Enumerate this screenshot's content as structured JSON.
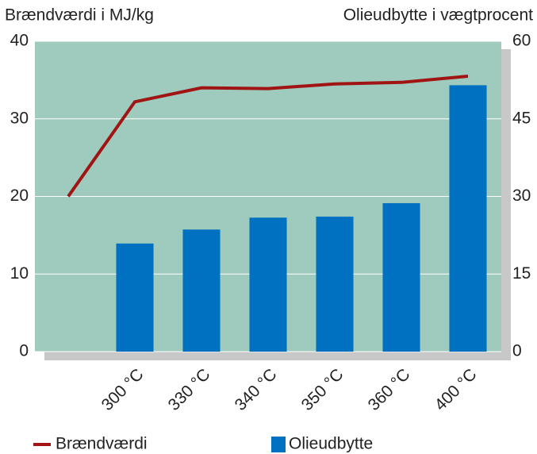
{
  "chart_data": {
    "type": "bar",
    "y_label": "Brændværdi i MJ/kg",
    "y2_label": "Olieudbytte i vægtprocent",
    "categories": [
      null,
      "300 °C",
      "330 °C",
      "340 °C",
      "350 °C",
      "360 °C",
      "400 °C"
    ],
    "series": [
      {
        "name": "Brændværdi",
        "type": "line",
        "color": "#a01414",
        "values": [
          20,
          32.2,
          34.0,
          33.9,
          34.5,
          34.7,
          35.5
        ]
      },
      {
        "name": "Olieudbytte",
        "type": "bar",
        "axis": "y2",
        "color": "#0070c0",
        "values": [
          null,
          20.9,
          23.6,
          25.9,
          26.1,
          28.7,
          51.5
        ]
      }
    ],
    "ylim": [
      0,
      40
    ],
    "yticks": [
      0,
      10,
      20,
      30,
      40
    ],
    "y2lim": [
      0,
      60
    ],
    "y2ticks": [
      0,
      15,
      30,
      45,
      60
    ],
    "background": "#9ecbbd",
    "grid": true
  }
}
